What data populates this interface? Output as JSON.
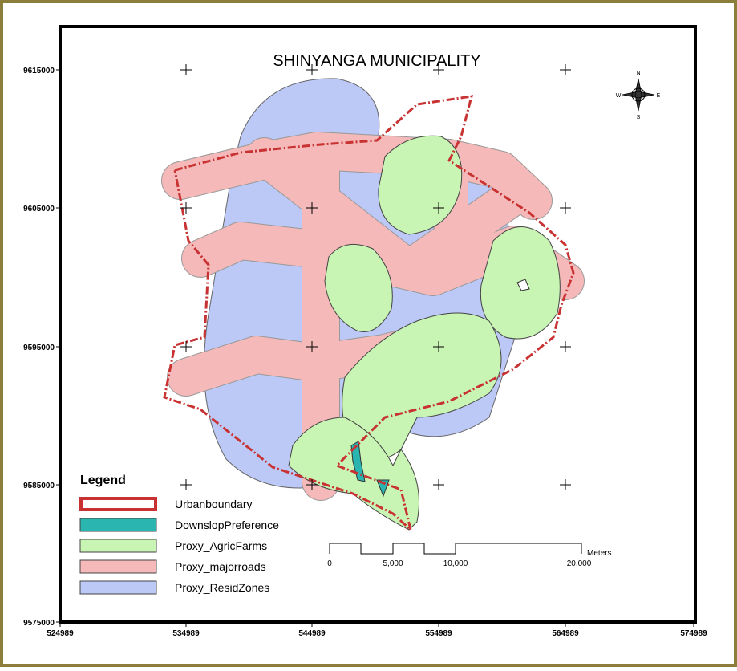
{
  "map": {
    "title": "SHINYANGA MUNICIPALITY",
    "y_labels": [
      9615000,
      9605000,
      9595000,
      9585000,
      9575000
    ],
    "x_labels": [
      524989,
      534989,
      544989,
      554989,
      564989,
      574989
    ],
    "north_arrow": {
      "n": "N",
      "s": "S",
      "e": "E",
      "w": "W"
    },
    "legend": {
      "title": "Legend",
      "items": [
        {
          "label": "Urbanboundary",
          "color": "#c83232"
        },
        {
          "label": "DownslopPreference",
          "color": "#2bb5b0"
        },
        {
          "label": "Proxy_AgricFarms",
          "color": "#c9f5b4"
        },
        {
          "label": "Proxy_majorroads",
          "color": "#f5b9b9"
        },
        {
          "label": "Proxy_ResidZones",
          "color": "#bcc8f5"
        }
      ]
    },
    "scale_bar": {
      "labels": [
        "0",
        "5,000",
        "10,000",
        "20,000"
      ],
      "unit": "Meters"
    }
  }
}
